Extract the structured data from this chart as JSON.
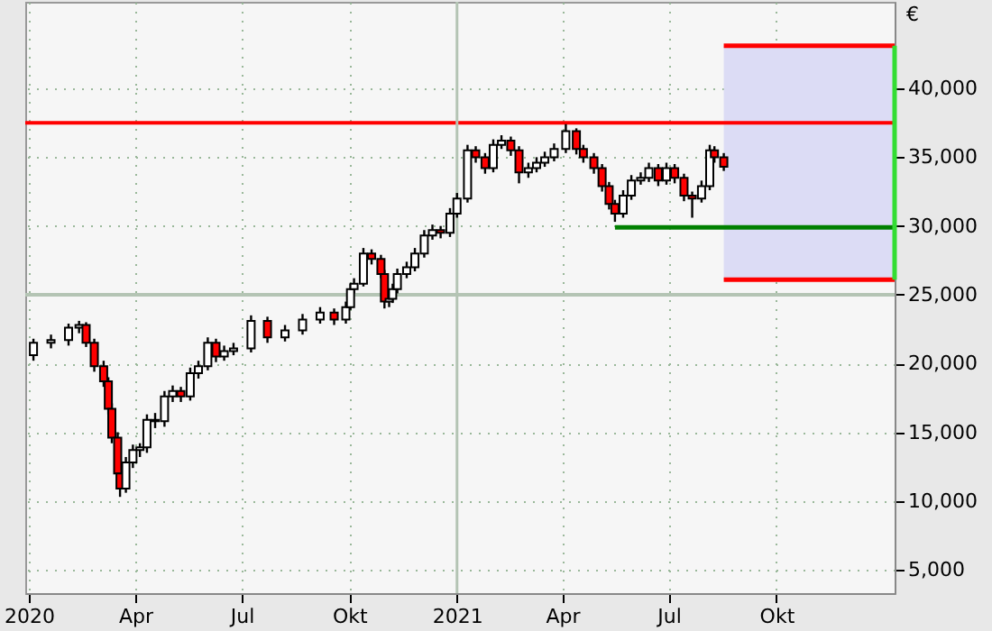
{
  "chart_data": {
    "type": "candlestick",
    "ylabel": "€",
    "x": [
      "2020-01-05",
      "2020-01-20",
      "2020-02-04",
      "2020-02-13",
      "2020-02-19",
      "2020-02-26",
      "2020-03-05",
      "2020-03-09",
      "2020-03-12",
      "2020-03-17",
      "2020-03-19",
      "2020-03-24",
      "2020-03-30",
      "2020-04-05",
      "2020-04-11",
      "2020-04-18",
      "2020-04-26",
      "2020-05-03",
      "2020-05-10",
      "2020-05-18",
      "2020-05-25",
      "2020-06-02",
      "2020-06-09",
      "2020-06-16",
      "2020-06-24",
      "2020-07-09",
      "2020-07-23",
      "2020-08-07",
      "2020-08-22",
      "2020-09-06",
      "2020-09-18",
      "2020-09-28",
      "2020-10-02",
      "2020-10-05",
      "2020-10-13",
      "2020-10-20",
      "2020-10-28",
      "2020-10-31",
      "2020-11-04",
      "2020-11-07",
      "2020-11-11",
      "2020-11-19",
      "2020-11-26",
      "2020-12-04",
      "2020-12-11",
      "2020-12-18",
      "2020-12-26",
      "2021-01-01",
      "2021-01-10",
      "2021-01-17",
      "2021-01-25",
      "2021-02-01",
      "2021-02-08",
      "2021-02-16",
      "2021-02-23",
      "2021-03-03",
      "2021-03-10",
      "2021-03-17",
      "2021-03-25",
      "2021-04-04",
      "2021-04-13",
      "2021-04-19",
      "2021-04-28",
      "2021-05-05",
      "2021-05-11",
      "2021-05-16",
      "2021-05-23",
      "2021-05-30",
      "2021-06-07",
      "2021-06-14",
      "2021-06-22",
      "2021-06-29",
      "2021-07-06",
      "2021-07-14",
      "2021-07-21",
      "2021-07-29",
      "2021-08-05",
      "2021-08-09",
      "2021-08-17"
    ],
    "ohlc": [
      [
        20600,
        21800,
        20200,
        21500
      ],
      [
        21500,
        22100,
        21100,
        21700
      ],
      [
        21700,
        22900,
        21300,
        22600
      ],
      [
        22600,
        23100,
        22200,
        22800
      ],
      [
        22800,
        23000,
        21200,
        21500
      ],
      [
        21500,
        21800,
        19400,
        19800
      ],
      [
        19800,
        20200,
        18300,
        18700
      ],
      [
        18700,
        19000,
        16300,
        16700
      ],
      [
        16700,
        17100,
        14200,
        14600
      ],
      [
        14600,
        15000,
        11600,
        12000
      ],
      [
        12000,
        12400,
        10300,
        10900
      ],
      [
        10900,
        13200,
        10600,
        12800
      ],
      [
        12800,
        14100,
        12400,
        13700
      ],
      [
        13700,
        14200,
        13200,
        13900
      ],
      [
        13900,
        16300,
        13500,
        15900
      ],
      [
        15900,
        16400,
        15300,
        15800
      ],
      [
        15800,
        18000,
        15400,
        17600
      ],
      [
        17600,
        18400,
        17200,
        18000
      ],
      [
        18000,
        18300,
        17200,
        17600
      ],
      [
        17600,
        19700,
        17300,
        19300
      ],
      [
        19300,
        20200,
        18900,
        19800
      ],
      [
        19800,
        21900,
        19500,
        21500
      ],
      [
        21500,
        21800,
        20100,
        20500
      ],
      [
        20500,
        21300,
        20200,
        20900
      ],
      [
        20900,
        21500,
        20600,
        21100
      ],
      [
        21100,
        23500,
        20800,
        23100
      ],
      [
        23100,
        23400,
        21500,
        21900
      ],
      [
        21900,
        22800,
        21600,
        22400
      ],
      [
        22400,
        23600,
        22100,
        23200
      ],
      [
        23200,
        24100,
        22900,
        23700
      ],
      [
        23700,
        24000,
        22800,
        23200
      ],
      [
        23200,
        24500,
        22900,
        24100
      ],
      [
        24100,
        25800,
        23900,
        25400
      ],
      [
        25400,
        26200,
        25100,
        25800
      ],
      [
        25800,
        28400,
        25600,
        28000
      ],
      [
        28000,
        28300,
        27200,
        27600
      ],
      [
        27600,
        27900,
        26200,
        26500
      ],
      [
        26500,
        26800,
        24000,
        24500
      ],
      [
        24500,
        25000,
        24100,
        24700
      ],
      [
        24700,
        25800,
        24400,
        25400
      ],
      [
        25400,
        26900,
        25100,
        26500
      ],
      [
        26500,
        27400,
        26200,
        27000
      ],
      [
        27000,
        28400,
        26700,
        28000
      ],
      [
        28000,
        29700,
        27700,
        29300
      ],
      [
        29300,
        30100,
        29000,
        29700
      ],
      [
        29700,
        30000,
        29100,
        29500
      ],
      [
        29500,
        31300,
        29200,
        30900
      ],
      [
        30900,
        32400,
        30600,
        32000
      ],
      [
        32000,
        35900,
        31700,
        35500
      ],
      [
        35500,
        35800,
        34600,
        35000
      ],
      [
        35000,
        35300,
        33800,
        34200
      ],
      [
        34200,
        36300,
        33900,
        35900
      ],
      [
        35900,
        36600,
        35600,
        36200
      ],
      [
        36200,
        36500,
        35100,
        35500
      ],
      [
        35500,
        35800,
        33100,
        33900
      ],
      [
        33900,
        34600,
        33500,
        34200
      ],
      [
        34200,
        35000,
        33900,
        34600
      ],
      [
        34600,
        35400,
        34300,
        35000
      ],
      [
        35000,
        36000,
        34700,
        35600
      ],
      [
        35600,
        37400,
        35300,
        36900
      ],
      [
        36900,
        37100,
        35200,
        35600
      ],
      [
        35600,
        35900,
        34600,
        35000
      ],
      [
        35000,
        35300,
        33800,
        34200
      ],
      [
        34200,
        34500,
        32500,
        32900
      ],
      [
        32900,
        33200,
        31200,
        31600
      ],
      [
        31600,
        31900,
        30300,
        30900
      ],
      [
        30900,
        32600,
        30600,
        32200
      ],
      [
        32200,
        33700,
        31900,
        33300
      ],
      [
        33300,
        33900,
        33000,
        33500
      ],
      [
        33500,
        34600,
        33200,
        34200
      ],
      [
        34200,
        34500,
        32900,
        33300
      ],
      [
        33300,
        34600,
        33000,
        34200
      ],
      [
        34200,
        34500,
        33100,
        33500
      ],
      [
        33500,
        33800,
        31800,
        32200
      ],
      [
        32200,
        32500,
        30600,
        32000
      ],
      [
        32000,
        33300,
        31700,
        32900
      ],
      [
        32900,
        35900,
        32600,
        35500
      ],
      [
        35500,
        35800,
        34600,
        35000
      ],
      [
        35000,
        35300,
        34000,
        34300
      ]
    ],
    "colors": [
      "#ffffff",
      "#ffffff",
      "#ffffff",
      "#ffffff",
      "#ff0000",
      "#ff0000",
      "#ff0000",
      "#ff0000",
      "#ff0000",
      "#ff0000",
      "#ff0000",
      "#ffffff",
      "#ffffff",
      "#ffffff",
      "#ffffff",
      "#ff0000",
      "#ffffff",
      "#ffffff",
      "#ff0000",
      "#ffffff",
      "#ffffff",
      "#ffffff",
      "#ff0000",
      "#ffffff",
      "#ffffff",
      "#ffffff",
      "#ff0000",
      "#ffffff",
      "#ffffff",
      "#ffffff",
      "#ff0000",
      "#ffffff",
      "#ffffff",
      "#ffffff",
      "#ffffff",
      "#ff0000",
      "#ff0000",
      "#ff0000",
      "#ffffff",
      "#ffffff",
      "#ffffff",
      "#ffffff",
      "#ffffff",
      "#ffffff",
      "#ffffff",
      "#ff0000",
      "#ffffff",
      "#ffffff",
      "#ffffff",
      "#ff0000",
      "#ff0000",
      "#ffffff",
      "#ffffff",
      "#ff0000",
      "#ff0000",
      "#ffffff",
      "#ffffff",
      "#ffffff",
      "#ffffff",
      "#ffffff",
      "#ff0000",
      "#ff0000",
      "#ff0000",
      "#ff0000",
      "#ff0000",
      "#ff0000",
      "#ffffff",
      "#ffffff",
      "#ffffff",
      "#ffffff",
      "#ff0000",
      "#ffffff",
      "#ff0000",
      "#ff0000",
      "#ff0000",
      "#ffffff",
      "#ffffff",
      "#ff0000",
      "#ff0000"
    ],
    "series": [
      {
        "type": "line",
        "color": "#008000",
        "x": [
          "2021-05-16",
          "2022-01-10"
        ],
        "values": [
          29900,
          29900
        ]
      },
      {
        "type": "line",
        "color": "#ff0000",
        "x": [
          "2021-08-17",
          "2022-01-10"
        ],
        "values": [
          43100,
          43100
        ]
      },
      {
        "type": "line",
        "color": "#ff0000",
        "x": [
          "2021-08-17",
          "2022-01-10"
        ],
        "values": [
          26100,
          26100
        ]
      },
      {
        "type": "line",
        "color": "#33dd33",
        "x": [
          "2022-01-10",
          "2022-01-10"
        ],
        "values": [
          26100,
          43100
        ]
      }
    ],
    "ref_lines": [
      {
        "axis": "y",
        "value": 37500,
        "color": "#ff0000"
      },
      {
        "axis": "y",
        "value": 25000,
        "color": "#b4c4b4"
      },
      {
        "axis": "x",
        "value": "2021-01-01",
        "color": "#b4c4b4"
      }
    ],
    "bands": [
      {
        "axis": "y",
        "from": 26100,
        "to": 43100,
        "color": "#dcdcf5"
      }
    ],
    "xlim": [
      "2019-12-29",
      "2022-01-10"
    ],
    "xticks": [
      {
        "value": "2020-01-01",
        "label": "2020"
      },
      {
        "value": "2020-04-01",
        "label": "Apr"
      },
      {
        "value": "2020-07-01",
        "label": "Jul"
      },
      {
        "value": "2020-10-01",
        "label": "Okt"
      },
      {
        "value": "2021-01-01",
        "label": "2021"
      },
      {
        "value": "2021-04-01",
        "label": "Apr"
      },
      {
        "value": "2021-07-01",
        "label": "Jul"
      },
      {
        "value": "2021-10-01",
        "label": "Okt"
      }
    ],
    "ylim": [
      3300,
      46300
    ],
    "yticks": [
      {
        "value": 5000,
        "label": "5,000"
      },
      {
        "value": 10000,
        "label": "10,000"
      },
      {
        "value": 15000,
        "label": "15,000"
      },
      {
        "value": 20000,
        "label": "20,000"
      },
      {
        "value": 25000,
        "label": "25,000"
      },
      {
        "value": 30000,
        "label": "30,000"
      },
      {
        "value": 35000,
        "label": "35,000"
      },
      {
        "value": 40000,
        "label": "40,000"
      }
    ],
    "grid": true
  }
}
